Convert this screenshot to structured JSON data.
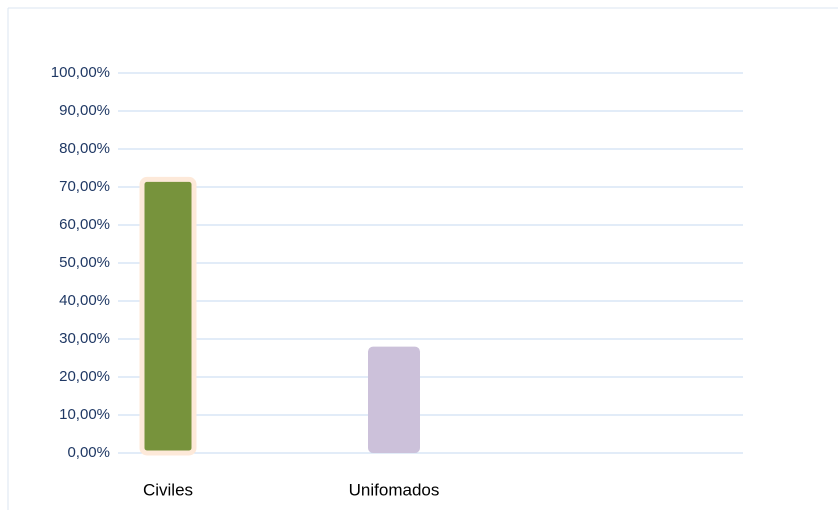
{
  "chart_data": {
    "type": "bar",
    "categories": [
      "Civiles",
      "Unifomados"
    ],
    "values": [
      72,
      28
    ],
    "colors": [
      "#77933c",
      "#ccc1da"
    ],
    "ylim": [
      0,
      100
    ],
    "yticks": [
      {
        "value": 0,
        "label": "0,00%"
      },
      {
        "value": 10,
        "label": "10,00%"
      },
      {
        "value": 20,
        "label": "20,00%"
      },
      {
        "value": 30,
        "label": "30,00%"
      },
      {
        "value": 40,
        "label": "40,00%"
      },
      {
        "value": 50,
        "label": "50,00%"
      },
      {
        "value": 60,
        "label": "60,00%"
      },
      {
        "value": 70,
        "label": "70,00%"
      },
      {
        "value": 80,
        "label": "80,00%"
      },
      {
        "value": 90,
        "label": "90,00%"
      },
      {
        "value": 100,
        "label": "100,00%"
      }
    ],
    "grid": true
  }
}
